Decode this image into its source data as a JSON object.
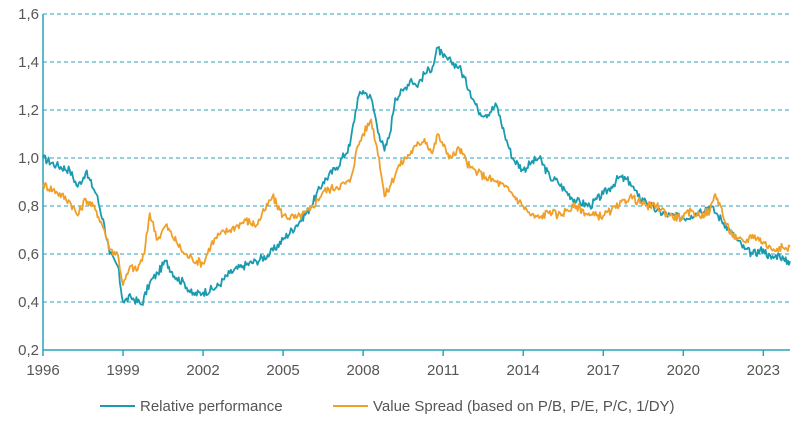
{
  "chart_data": {
    "type": "line",
    "title": "",
    "xlabel": "",
    "ylabel": "",
    "xlim": [
      1996,
      2024.0
    ],
    "ylim": [
      0.2,
      1.6
    ],
    "grid": "horizontal dashed",
    "legend_position": "bottom",
    "x_ticks": [
      1996,
      1999,
      2002,
      2005,
      2008,
      2011,
      2014,
      2017,
      2020,
      2023
    ],
    "x_tick_labels": [
      "1996",
      "1999",
      "2002",
      "2005",
      "2008",
      "2011",
      "2014",
      "2017",
      "2020",
      "2023"
    ],
    "y_ticks": [
      0.2,
      0.4,
      0.6,
      0.8,
      1.0,
      1.2,
      1.4,
      1.6
    ],
    "y_tick_labels": [
      "0,2",
      "0,4",
      "0,6",
      "0,8",
      "1,0",
      "1,2",
      "1,4",
      "1,6"
    ],
    "series": [
      {
        "name": "Relative performance",
        "color": "#1a9bb0",
        "x": [
          1996.0,
          1996.5,
          1997.0,
          1997.3,
          1997.6,
          1998.0,
          1998.3,
          1998.5,
          1998.8,
          1999.0,
          1999.3,
          1999.7,
          2000.0,
          2000.3,
          2000.6,
          2001.0,
          2001.3,
          2001.6,
          2002.0,
          2002.5,
          2003.0,
          2003.5,
          2004.0,
          2004.5,
          2005.0,
          2005.5,
          2006.0,
          2006.5,
          2007.0,
          2007.5,
          2007.8,
          2008.0,
          2008.3,
          2008.6,
          2008.8,
          2009.0,
          2009.2,
          2009.5,
          2009.8,
          2010.0,
          2010.3,
          2010.6,
          2010.8,
          2011.0,
          2011.3,
          2011.6,
          2012.0,
          2012.3,
          2012.6,
          2013.0,
          2013.3,
          2013.6,
          2014.0,
          2014.3,
          2014.6,
          2015.0,
          2015.3,
          2015.6,
          2016.0,
          2016.5,
          2017.0,
          2017.3,
          2017.6,
          2018.0,
          2018.3,
          2018.6,
          2019.0,
          2019.5,
          2020.0,
          2020.3,
          2020.6,
          2021.0,
          2021.3,
          2021.6,
          2022.0,
          2022.3,
          2022.6,
          2023.0,
          2023.3,
          2023.6,
          2023.8,
          2024.0
        ],
        "values": [
          1.0,
          0.97,
          0.95,
          0.88,
          0.94,
          0.85,
          0.72,
          0.6,
          0.55,
          0.4,
          0.42,
          0.39,
          0.48,
          0.52,
          0.57,
          0.5,
          0.48,
          0.43,
          0.44,
          0.46,
          0.52,
          0.55,
          0.57,
          0.6,
          0.66,
          0.72,
          0.79,
          0.9,
          0.96,
          1.05,
          1.25,
          1.28,
          1.25,
          1.1,
          1.03,
          1.1,
          1.25,
          1.28,
          1.33,
          1.3,
          1.35,
          1.38,
          1.46,
          1.42,
          1.4,
          1.38,
          1.28,
          1.2,
          1.18,
          1.22,
          1.1,
          1.0,
          0.95,
          0.98,
          1.0,
          0.92,
          0.9,
          0.86,
          0.82,
          0.8,
          0.85,
          0.88,
          0.92,
          0.9,
          0.84,
          0.82,
          0.78,
          0.76,
          0.75,
          0.76,
          0.78,
          0.8,
          0.76,
          0.72,
          0.66,
          0.62,
          0.6,
          0.62,
          0.58,
          0.6,
          0.57,
          0.57
        ]
      },
      {
        "name": "Value Spread (based on P/B, P/E, P/C, 1/DY)",
        "color": "#f0a02a",
        "x": [
          1996.0,
          1996.5,
          1997.0,
          1997.3,
          1997.6,
          1998.0,
          1998.3,
          1998.5,
          1998.8,
          1999.0,
          1999.3,
          1999.5,
          1999.8,
          2000.0,
          2000.3,
          2000.6,
          2001.0,
          2001.3,
          2001.6,
          2002.0,
          2002.3,
          2002.6,
          2003.0,
          2003.3,
          2003.6,
          2004.0,
          2004.3,
          2004.6,
          2005.0,
          2005.5,
          2006.0,
          2006.5,
          2007.0,
          2007.5,
          2007.8,
          2008.0,
          2008.3,
          2008.6,
          2008.8,
          2009.0,
          2009.3,
          2009.6,
          2010.0,
          2010.3,
          2010.6,
          2010.8,
          2011.0,
          2011.3,
          2011.6,
          2012.0,
          2012.3,
          2012.6,
          2013.0,
          2013.3,
          2013.6,
          2014.0,
          2014.3,
          2014.6,
          2015.0,
          2015.3,
          2015.6,
          2016.0,
          2016.5,
          2017.0,
          2017.3,
          2017.6,
          2018.0,
          2018.3,
          2018.6,
          2019.0,
          2019.5,
          2020.0,
          2020.3,
          2020.6,
          2021.0,
          2021.2,
          2021.4,
          2021.6,
          2022.0,
          2022.3,
          2022.6,
          2023.0,
          2023.3,
          2023.6,
          2023.8,
          2024.0
        ],
        "values": [
          0.89,
          0.86,
          0.82,
          0.76,
          0.83,
          0.78,
          0.7,
          0.62,
          0.6,
          0.47,
          0.55,
          0.53,
          0.6,
          0.77,
          0.66,
          0.72,
          0.65,
          0.6,
          0.58,
          0.56,
          0.64,
          0.68,
          0.7,
          0.72,
          0.74,
          0.72,
          0.78,
          0.84,
          0.76,
          0.75,
          0.78,
          0.86,
          0.88,
          0.9,
          1.05,
          1.1,
          1.16,
          1.0,
          0.84,
          0.88,
          0.96,
          1.0,
          1.05,
          1.08,
          1.02,
          1.1,
          1.05,
          1.0,
          1.04,
          0.96,
          0.94,
          0.92,
          0.9,
          0.88,
          0.85,
          0.8,
          0.76,
          0.75,
          0.78,
          0.76,
          0.78,
          0.8,
          0.76,
          0.76,
          0.78,
          0.8,
          0.84,
          0.82,
          0.8,
          0.8,
          0.76,
          0.75,
          0.78,
          0.76,
          0.78,
          0.85,
          0.8,
          0.72,
          0.66,
          0.65,
          0.68,
          0.65,
          0.62,
          0.63,
          0.62,
          0.63
        ]
      }
    ]
  }
}
